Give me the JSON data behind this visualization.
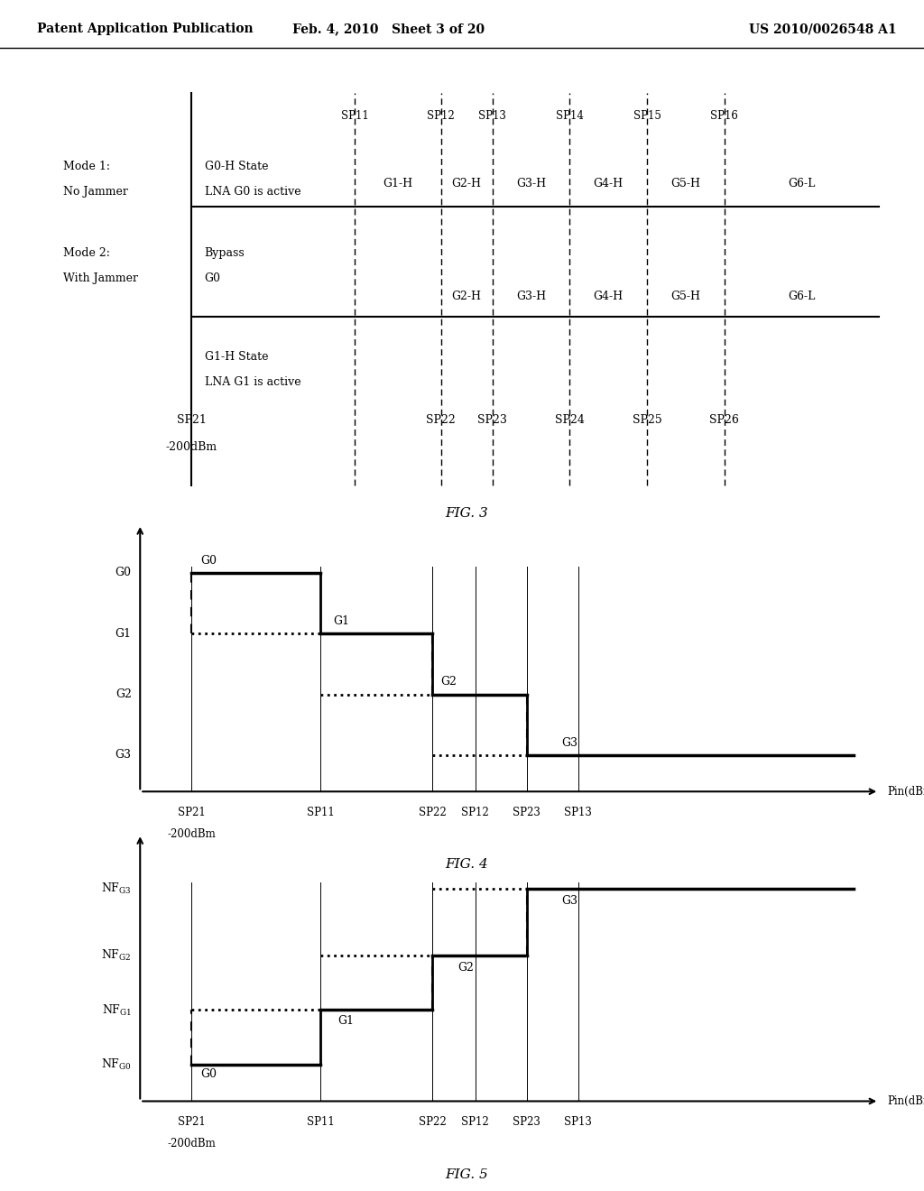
{
  "header": {
    "left": "Patent Application Publication",
    "center": "Feb. 4, 2010   Sheet 3 of 20",
    "right": "US 2010/0026548 A1"
  },
  "fig3": {
    "caption": "FIG. 3",
    "sp_top": [
      "SP11",
      "SP12",
      "SP13",
      "SP14",
      "SP15",
      "SP16"
    ],
    "mode1_gains": [
      "G1-H",
      "G2-H",
      "G3-H",
      "G4-H",
      "G5-H",
      "G6-L"
    ],
    "mode2_gains": [
      "G2-H",
      "G3-H",
      "G4-H",
      "G5-H",
      "G6-L"
    ]
  },
  "fig4": {
    "caption": "FIG. 4"
  },
  "fig5": {
    "caption": "FIG. 5"
  }
}
